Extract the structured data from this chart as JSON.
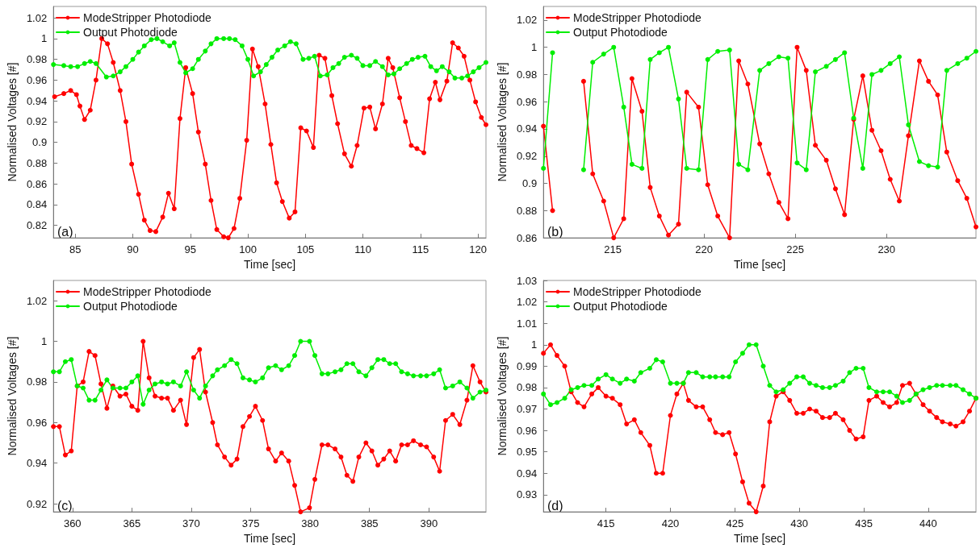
{
  "chart_data": [
    {
      "type": "line",
      "xlabel": "Time [sec]",
      "ylabel": "Normalised Voltages [#]",
      "annotations": [
        "(a)"
      ],
      "legend": "top left",
      "marker": "circle",
      "line_style": "solid",
      "xlim": [
        83.1,
        120.7
      ],
      "ylim": [
        0.808,
        1.031
      ],
      "xticks": [
        85,
        90,
        95,
        100,
        105,
        110,
        115,
        120
      ],
      "yticks": [
        0.82,
        0.84,
        0.86,
        0.88,
        0.9,
        0.92,
        0.94,
        0.96,
        0.98,
        1,
        1.02
      ],
      "series": [
        {
          "name": "ModeStripper Photodiode",
          "color": "#ff0000",
          "x": [
            83.2,
            84.0,
            84.6,
            85.1,
            85.4,
            85.8,
            86.3,
            86.8,
            87.3,
            87.8,
            88.3,
            88.9,
            89.4,
            89.9,
            90.5,
            91.0,
            91.5,
            92.0,
            92.6,
            93.1,
            93.6,
            94.1,
            94.6,
            95.2,
            95.7,
            96.3,
            96.8,
            97.3,
            97.9,
            98.3,
            98.8,
            99.3,
            99.9,
            100.4,
            100.9,
            101.5,
            102.0,
            102.5,
            103.0,
            103.6,
            104.1,
            104.6,
            105.1,
            105.7,
            106.2,
            106.7,
            107.3,
            107.8,
            108.4,
            109.0,
            109.5,
            110.1,
            110.6,
            111.1,
            111.7,
            112.2,
            112.6,
            113.2,
            113.7,
            114.2,
            114.7,
            115.3,
            115.8,
            116.3,
            116.7,
            117.3,
            117.8,
            118.3,
            118.8,
            119.3,
            119.8,
            120.3,
            120.7
          ],
          "values": [
            0.944,
            0.947,
            0.95,
            0.946,
            0.935,
            0.922,
            0.931,
            0.96,
            1.0,
            0.995,
            0.977,
            0.95,
            0.92,
            0.879,
            0.85,
            0.825,
            0.815,
            0.814,
            0.828,
            0.851,
            0.836,
            0.923,
            0.972,
            0.947,
            0.91,
            0.879,
            0.844,
            0.816,
            0.809,
            0.808,
            0.817,
            0.846,
            0.902,
            0.99,
            0.973,
            0.937,
            0.898,
            0.861,
            0.843,
            0.827,
            0.833,
            0.914,
            0.911,
            0.895,
            0.984,
            0.981,
            0.945,
            0.918,
            0.889,
            0.877,
            0.897,
            0.933,
            0.934,
            0.913,
            0.937,
            0.981,
            0.972,
            0.943,
            0.92,
            0.897,
            0.894,
            0.89,
            0.942,
            0.958,
            0.941,
            0.959,
            0.996,
            0.991,
            0.983,
            0.96,
            0.939,
            0.924,
            0.917
          ]
        },
        {
          "name": "Output Photodiode",
          "color": "#00ee00",
          "x": [
            83.1,
            84.0,
            84.6,
            85.2,
            85.8,
            86.3,
            86.8,
            87.7,
            88.3,
            88.9,
            89.4,
            90.0,
            90.5,
            91.0,
            91.6,
            92.1,
            92.6,
            93.2,
            93.6,
            94.1,
            94.6,
            95.2,
            95.7,
            96.3,
            96.8,
            97.3,
            97.9,
            98.4,
            98.9,
            99.5,
            100.0,
            100.5,
            101.1,
            101.6,
            102.1,
            102.6,
            103.2,
            103.7,
            104.2,
            104.8,
            105.3,
            105.8,
            106.3,
            106.9,
            107.4,
            107.9,
            108.4,
            109.0,
            109.5,
            110.0,
            110.6,
            111.1,
            111.7,
            112.2,
            112.7,
            113.2,
            113.8,
            114.3,
            114.8,
            115.4,
            115.9,
            116.4,
            116.9,
            117.5,
            118.0,
            118.6,
            119.1,
            119.6,
            120.1,
            120.7
          ],
          "values": [
            0.975,
            0.974,
            0.973,
            0.973,
            0.976,
            0.978,
            0.976,
            0.963,
            0.964,
            0.968,
            0.973,
            0.98,
            0.987,
            0.993,
            0.999,
            1.0,
            0.997,
            0.993,
            0.996,
            0.977,
            0.967,
            0.971,
            0.98,
            0.988,
            0.995,
            1.0,
            1.0,
            1.0,
            0.999,
            0.993,
            0.98,
            0.964,
            0.968,
            0.975,
            0.982,
            0.989,
            0.993,
            0.997,
            0.995,
            0.98,
            0.981,
            0.983,
            0.964,
            0.965,
            0.972,
            0.976,
            0.982,
            0.984,
            0.981,
            0.974,
            0.974,
            0.978,
            0.973,
            0.965,
            0.966,
            0.971,
            0.976,
            0.98,
            0.982,
            0.983,
            0.973,
            0.969,
            0.973,
            0.968,
            0.962,
            0.962,
            0.964,
            0.968,
            0.972,
            0.977
          ]
        }
      ]
    },
    {
      "type": "line",
      "xlabel": "Time [sec]",
      "ylabel": "Normalised Voltages [#]",
      "annotations": [
        "(b)"
      ],
      "legend": "top left",
      "marker": "circle",
      "line_style": "solid",
      "xlim": [
        211.2,
        234.9
      ],
      "ylim": [
        0.86,
        1.03
      ],
      "xticks": [
        215,
        220,
        225,
        230
      ],
      "yticks": [
        0.86,
        0.88,
        0.9,
        0.92,
        0.94,
        0.96,
        0.98,
        1,
        1.02
      ],
      "series": [
        {
          "name": "ModeStripper Photodiode",
          "color": "#ff0000",
          "x": [
            211.2,
            211.7,
            212.6,
            213.4,
            213.9,
            214.5,
            215.05,
            215.6,
            216.05,
            216.6,
            217.05,
            217.55,
            218.05,
            218.6,
            219.05,
            219.7,
            220.2,
            220.75,
            221.4,
            221.9,
            222.4,
            223.05,
            223.55,
            224.1,
            224.6,
            225.1,
            225.6,
            226.1,
            226.7,
            227.2,
            227.7,
            228.2,
            228.7,
            229.2,
            229.7,
            230.2,
            230.7,
            231.2,
            231.8,
            232.3,
            232.8,
            233.3,
            233.9,
            234.4,
            234.9
          ],
          "values": [
            0.942,
            0.88,
            null,
            0.975,
            0.907,
            0.887,
            0.86,
            0.874,
            0.977,
            0.953,
            0.897,
            0.876,
            0.862,
            0.87,
            0.967,
            0.956,
            0.899,
            0.876,
            0.86,
            0.99,
            0.973,
            0.929,
            0.907,
            0.886,
            0.874,
            1.0,
            0.983,
            0.928,
            0.917,
            0.896,
            0.877,
            0.947,
            0.979,
            0.939,
            0.924,
            0.903,
            0.887,
            0.935,
            0.99,
            0.975,
            0.965,
            0.923,
            0.902,
            0.889,
            0.868
          ]
        },
        {
          "name": "Output Photodiode",
          "color": "#00ee00",
          "x": [
            211.2,
            211.7,
            212.6,
            213.4,
            213.9,
            214.5,
            215.05,
            215.6,
            216.05,
            216.6,
            217.05,
            217.55,
            218.05,
            218.6,
            219.05,
            219.7,
            220.2,
            220.75,
            221.4,
            221.9,
            222.4,
            223.05,
            223.55,
            224.1,
            224.6,
            225.1,
            225.6,
            226.1,
            226.7,
            227.2,
            227.7,
            228.2,
            228.7,
            229.2,
            229.7,
            230.2,
            230.7,
            231.2,
            231.8,
            232.3,
            232.8,
            233.3,
            233.9,
            234.4,
            234.9
          ],
          "values": [
            0.911,
            0.996,
            null,
            0.91,
            0.989,
            0.995,
            1.0,
            0.956,
            0.914,
            0.911,
            0.991,
            0.996,
            1.0,
            0.962,
            0.911,
            0.91,
            0.991,
            0.997,
            0.998,
            0.914,
            0.91,
            0.983,
            0.988,
            0.993,
            0.992,
            0.915,
            0.91,
            0.982,
            0.986,
            0.991,
            0.996,
            0.948,
            0.911,
            0.98,
            0.983,
            0.988,
            0.993,
            0.943,
            0.916,
            0.913,
            0.912,
            0.983,
            0.988,
            0.992,
            0.997
          ]
        }
      ]
    },
    {
      "type": "line",
      "xlabel": "Time [sec]",
      "ylabel": "Normalised Voltages [#]",
      "annotations": [
        "(c)"
      ],
      "legend": "top left",
      "marker": "circle",
      "line_style": "solid",
      "xlim": [
        358.4,
        394.8
      ],
      "ylim": [
        0.916,
        1.03
      ],
      "xticks": [
        360,
        365,
        370,
        375,
        380,
        385,
        390
      ],
      "yticks": [
        0.92,
        0.94,
        0.96,
        0.98,
        1,
        1.02
      ],
      "series": [
        {
          "name": "ModeStripper Photodiode",
          "color": "#ff0000",
          "x": [
            358.4,
            358.9,
            359.4,
            359.9,
            360.4,
            360.9,
            361.4,
            361.9,
            362.4,
            362.9,
            363.4,
            364.0,
            364.5,
            365.0,
            365.5,
            365.95,
            366.45,
            366.95,
            367.5,
            368.0,
            368.5,
            369.1,
            369.6,
            370.2,
            370.7,
            371.2,
            371.8,
            372.2,
            372.8,
            373.35,
            373.85,
            374.35,
            374.9,
            375.4,
            376.0,
            376.5,
            377.1,
            377.6,
            378.2,
            378.7,
            379.2,
            379.95,
            380.4,
            381.0,
            381.5,
            382.1,
            382.6,
            383.1,
            383.6,
            384.1,
            384.7,
            385.2,
            385.7,
            386.2,
            386.7,
            387.2,
            387.7,
            388.2,
            388.7,
            389.3,
            389.8,
            390.4,
            390.9,
            391.4,
            392.0,
            392.6,
            393.2,
            393.7,
            394.3,
            394.8
          ],
          "values": [
            0.958,
            0.958,
            0.944,
            0.946,
            0.978,
            0.98,
            0.995,
            0.993,
            0.979,
            0.967,
            0.978,
            0.973,
            0.974,
            0.968,
            0.966,
            1.0,
            0.982,
            0.973,
            0.972,
            0.972,
            0.966,
            0.971,
            0.959,
            0.992,
            0.996,
            0.975,
            0.96,
            0.949,
            0.943,
            0.939,
            0.942,
            0.958,
            0.963,
            0.968,
            0.961,
            0.947,
            0.941,
            0.945,
            0.941,
            0.929,
            0.916,
            0.918,
            0.932,
            0.949,
            0.949,
            0.947,
            0.943,
            0.934,
            0.931,
            0.943,
            0.95,
            0.946,
            0.939,
            0.942,
            0.946,
            0.941,
            0.949,
            0.949,
            0.951,
            0.949,
            0.948,
            0.943,
            0.936,
            0.961,
            0.964,
            0.959,
            0.971,
            0.988,
            0.98,
            0.975
          ]
        },
        {
          "name": "Output Photodiode",
          "color": "#00ee00",
          "x": [
            358.4,
            358.9,
            359.4,
            359.9,
            360.4,
            360.9,
            361.4,
            361.9,
            362.4,
            362.9,
            363.4,
            364.0,
            364.5,
            365.0,
            365.5,
            365.95,
            366.45,
            366.95,
            367.5,
            368.0,
            368.5,
            369.1,
            369.6,
            370.2,
            370.7,
            371.2,
            371.8,
            372.2,
            372.8,
            373.35,
            373.85,
            374.35,
            374.9,
            375.4,
            376.0,
            376.5,
            377.1,
            377.6,
            378.2,
            378.7,
            379.2,
            379.95,
            380.4,
            381.0,
            381.5,
            382.1,
            382.6,
            383.1,
            383.6,
            384.1,
            384.7,
            385.2,
            385.7,
            386.2,
            386.7,
            387.2,
            387.7,
            388.2,
            388.7,
            389.3,
            389.8,
            390.4,
            390.9,
            391.4,
            392.0,
            392.6,
            393.2,
            393.7,
            394.3,
            394.8
          ],
          "values": [
            0.985,
            0.985,
            0.99,
            0.991,
            0.978,
            0.977,
            0.971,
            0.971,
            0.976,
            0.981,
            0.977,
            0.977,
            0.977,
            0.98,
            0.983,
            0.969,
            0.976,
            0.979,
            0.98,
            0.979,
            0.98,
            0.978,
            0.985,
            0.976,
            0.972,
            0.978,
            0.983,
            0.986,
            0.988,
            0.991,
            0.989,
            0.982,
            0.981,
            0.98,
            0.982,
            0.987,
            0.988,
            0.986,
            0.988,
            0.993,
            1.0,
            1.0,
            0.993,
            0.984,
            0.984,
            0.985,
            0.986,
            0.989,
            0.989,
            0.985,
            0.983,
            0.987,
            0.991,
            0.991,
            0.989,
            0.989,
            0.985,
            0.984,
            0.983,
            0.983,
            0.983,
            0.984,
            0.986,
            0.977,
            0.978,
            0.98,
            0.977,
            0.972,
            0.975,
            0.976
          ]
        }
      ]
    },
    {
      "type": "line",
      "xlabel": "Time [sec]",
      "ylabel": "Normalised Voltages [#]",
      "annotations": [
        "(d)"
      ],
      "legend": "top left",
      "marker": "circle",
      "line_style": "solid",
      "xlim": [
        410.15,
        443.7
      ],
      "ylim": [
        0.922,
        1.03
      ],
      "xticks": [
        415,
        420,
        425,
        430,
        435,
        440
      ],
      "yticks": [
        0.93,
        0.94,
        0.95,
        0.96,
        0.97,
        0.98,
        0.99,
        1,
        1.01,
        1.02,
        1.03
      ],
      "series": [
        {
          "name": "ModeStripper Photodiode",
          "color": "#ff0000",
          "x": [
            410.15,
            410.7,
            411.2,
            411.8,
            412.3,
            412.8,
            413.3,
            413.9,
            414.4,
            415.0,
            415.5,
            416.1,
            416.6,
            417.2,
            417.7,
            418.4,
            418.9,
            419.4,
            420.0,
            420.5,
            421.0,
            421.4,
            422.0,
            422.5,
            423.05,
            423.5,
            424.05,
            424.55,
            425.05,
            425.6,
            426.1,
            426.65,
            427.2,
            427.7,
            428.2,
            428.75,
            429.25,
            429.8,
            430.3,
            430.8,
            431.3,
            431.8,
            432.35,
            432.8,
            433.4,
            433.9,
            434.4,
            434.95,
            435.4,
            436.0,
            436.5,
            437.0,
            437.55,
            438.0,
            438.55,
            439.05,
            439.6,
            440.1,
            440.65,
            441.1,
            441.7,
            442.15,
            442.7,
            443.2,
            443.7
          ],
          "values": [
            0.996,
            1.0,
            0.995,
            0.99,
            0.978,
            0.973,
            0.971,
            0.977,
            0.98,
            0.976,
            0.975,
            0.972,
            0.963,
            0.965,
            0.959,
            0.953,
            0.94,
            0.94,
            0.967,
            0.977,
            0.982,
            0.974,
            0.971,
            0.971,
            0.965,
            0.959,
            0.958,
            0.959,
            0.949,
            0.936,
            0.926,
            0.922,
            0.934,
            0.964,
            0.976,
            0.978,
            0.974,
            0.968,
            0.968,
            0.97,
            0.969,
            0.966,
            0.966,
            0.968,
            0.965,
            0.96,
            0.956,
            0.957,
            0.974,
            0.976,
            0.973,
            0.971,
            0.973,
            0.981,
            0.982,
            0.977,
            0.972,
            0.969,
            0.966,
            0.964,
            0.963,
            0.962,
            0.964,
            0.969,
            0.975
          ]
        },
        {
          "name": "Output Photodiode",
          "color": "#00ee00",
          "x": [
            410.15,
            410.7,
            411.2,
            411.8,
            412.3,
            412.8,
            413.3,
            413.9,
            414.4,
            415.0,
            415.5,
            416.1,
            416.6,
            417.2,
            417.7,
            418.4,
            418.9,
            419.4,
            420.0,
            420.5,
            421.0,
            421.4,
            422.0,
            422.5,
            423.05,
            423.5,
            424.05,
            424.55,
            425.05,
            425.6,
            426.1,
            426.65,
            427.2,
            427.7,
            428.2,
            428.75,
            429.25,
            429.8,
            430.3,
            430.8,
            431.3,
            431.8,
            432.35,
            432.8,
            433.4,
            433.9,
            434.4,
            434.95,
            435.4,
            436.0,
            436.5,
            437.0,
            437.55,
            438.0,
            438.55,
            439.05,
            439.6,
            440.1,
            440.65,
            441.1,
            441.7,
            442.15,
            442.7,
            443.2,
            443.7
          ],
          "values": [
            0.977,
            0.972,
            0.973,
            0.975,
            0.979,
            0.98,
            0.981,
            0.981,
            0.984,
            0.986,
            0.984,
            0.982,
            0.984,
            0.983,
            0.987,
            0.989,
            0.993,
            0.992,
            0.982,
            0.982,
            0.982,
            0.987,
            0.987,
            0.985,
            0.985,
            0.985,
            0.985,
            0.985,
            0.992,
            0.996,
            1.0,
            1.0,
            0.99,
            0.981,
            0.978,
            0.979,
            0.982,
            0.985,
            0.985,
            0.982,
            0.981,
            0.98,
            0.98,
            0.981,
            0.983,
            0.987,
            0.989,
            0.989,
            0.98,
            0.978,
            0.978,
            0.978,
            0.976,
            0.973,
            0.974,
            0.977,
            0.979,
            0.98,
            0.981,
            0.981,
            0.981,
            0.981,
            0.979,
            0.977,
            0.975
          ]
        }
      ]
    }
  ]
}
